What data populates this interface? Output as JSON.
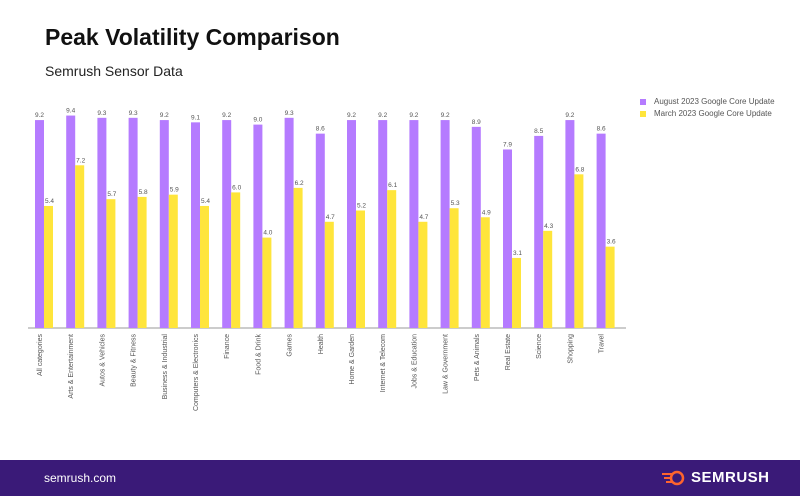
{
  "chart_data": {
    "type": "bar",
    "title": "Peak Volatility Comparison",
    "subtitle": "Semrush Sensor Data",
    "categories": [
      "All categories",
      "Arts & Entertainment",
      "Autos & Vehicles",
      "Beauty & Fitness",
      "Business & Industrial",
      "Computers & Electronics",
      "Finance",
      "Food & Drink",
      "Games",
      "Health",
      "Home & Garden",
      "Internet & Telecom",
      "Jobs & Education",
      "Law & Government",
      "Pets & Animals",
      "Real Estate",
      "Science",
      "Shopping",
      "Travel"
    ],
    "series": [
      {
        "name": "August 2023 Google Core Update",
        "color": "#b57bff",
        "values": [
          9.2,
          9.4,
          9.3,
          9.3,
          9.2,
          9.1,
          9.2,
          9.0,
          9.3,
          8.6,
          9.2,
          9.2,
          9.2,
          9.2,
          8.9,
          7.9,
          8.5,
          9.2,
          8.6
        ]
      },
      {
        "name": "March 2023 Google Core Update",
        "color": "#ffe53b",
        "values": [
          5.4,
          7.2,
          5.7,
          5.8,
          5.9,
          5.4,
          6.0,
          4.0,
          6.2,
          4.7,
          5.2,
          6.1,
          4.7,
          5.3,
          4.9,
          3.1,
          4.3,
          6.8,
          3.6
        ]
      }
    ],
    "ylim": [
      0,
      9.4
    ],
    "grid": false,
    "legend_placement": "top-right"
  },
  "footer": {
    "site": "semrush.com",
    "brand": "SEMRUSH",
    "brand_icon": "semrush-fireball-logo"
  }
}
